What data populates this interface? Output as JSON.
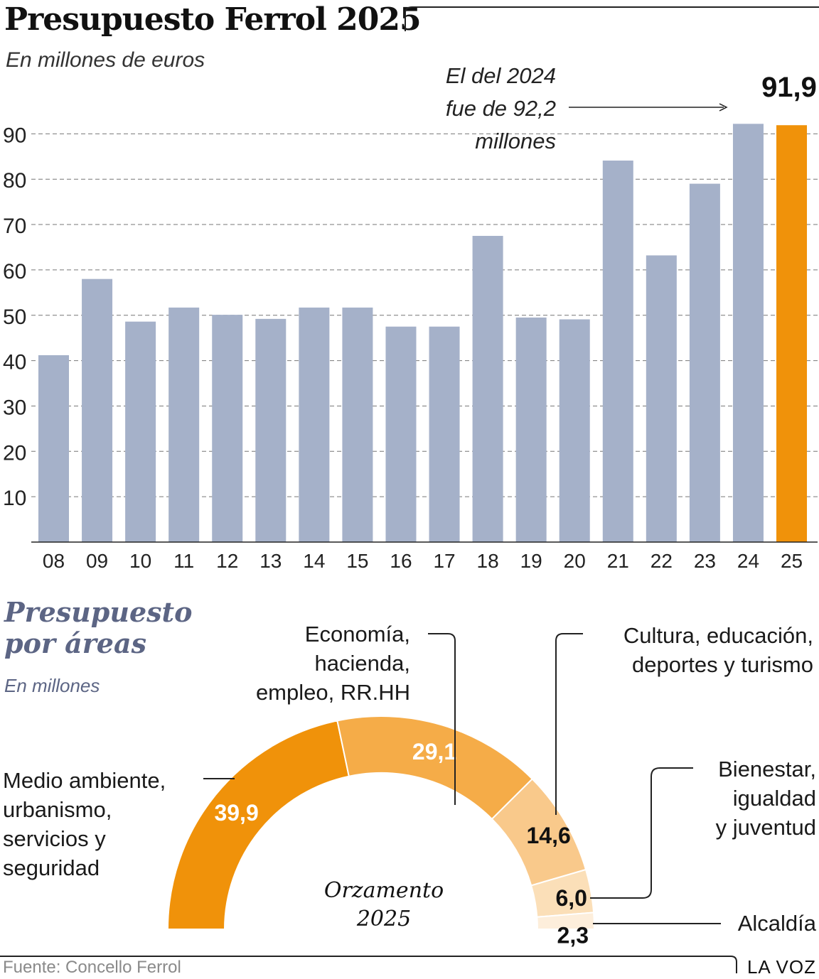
{
  "title": "Presupuesto Ferrol 2025",
  "subtitle": "En millones de euros",
  "annotation": [
    "El del 2024",
    "fue de 92,2",
    "millones"
  ],
  "highlight_label": "91,9",
  "chart_data": [
    {
      "type": "bar",
      "title": "Presupuesto Ferrol 2025",
      "ylabel": "En millones de euros",
      "categories": [
        "08",
        "09",
        "10",
        "11",
        "12",
        "13",
        "14",
        "15",
        "16",
        "17",
        "18",
        "19",
        "20",
        "21",
        "22",
        "23",
        "24",
        "25"
      ],
      "values": [
        41.2,
        58.0,
        48.6,
        51.7,
        50.1,
        49.2,
        51.7,
        51.7,
        47.5,
        47.5,
        67.5,
        49.5,
        49.1,
        84.1,
        63.2,
        79.0,
        92.2,
        91.9
      ],
      "yticks": [
        10,
        20,
        30,
        40,
        50,
        60,
        70,
        80,
        90
      ],
      "ylim": [
        0,
        95
      ],
      "grid": true,
      "colors": {
        "default": "#a5b1c9",
        "highlight": "#f0920a"
      },
      "highlight_index": 17
    },
    {
      "type": "pie",
      "title": "Presupuesto por áreas",
      "subtitle": "En millones",
      "center_label": [
        "Orzamento",
        "2025"
      ],
      "slices": [
        {
          "label": [
            "Medio ambiente,",
            "urbanismo,",
            "servicios y",
            "seguridad"
          ],
          "value": 39.9,
          "value_label": "39,9",
          "color": "#f0920a",
          "text_color": "#ffffff"
        },
        {
          "label": [
            "Economía,",
            "hacienda,",
            "empleo, RR.HH"
          ],
          "value": 29.1,
          "value_label": "29,1",
          "color": "#f5ac48",
          "text_color": "#ffffff"
        },
        {
          "label": [
            "Cultura, educación,",
            "deportes y turismo"
          ],
          "value": 14.6,
          "value_label": "14,6",
          "color": "#f9c98b",
          "text_color": "#111111"
        },
        {
          "label": [
            "Bienestar,",
            "igualdad",
            "y juventud"
          ],
          "value": 6.0,
          "value_label": "6,0",
          "color": "#fbdfb8",
          "text_color": "#111111"
        },
        {
          "label": [
            "Alcaldía"
          ],
          "value": 2.3,
          "value_label": "2,3",
          "color": "#fdeedb",
          "text_color": "#111111"
        }
      ]
    }
  ],
  "footer": {
    "source": "Fuente: Concello Ferrol",
    "brand": "LA VOZ"
  }
}
